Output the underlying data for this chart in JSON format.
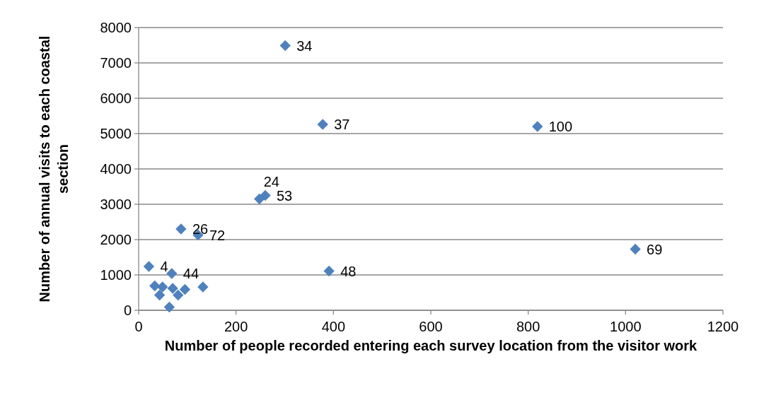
{
  "chart_data": {
    "type": "scatter",
    "xlabel": "Number of people recorded entering each survey location from the visitor work",
    "ylabel": "Number of annual visits to each coastal section",
    "xlim": [
      0,
      1200
    ],
    "xticks": [
      0,
      200,
      400,
      600,
      800,
      1000,
      1200
    ],
    "ylim": [
      0,
      8000
    ],
    "yticks": [
      0,
      1000,
      2000,
      3000,
      4000,
      5000,
      6000,
      7000,
      8000
    ],
    "grid": "y",
    "marker": "diamond",
    "series": [
      {
        "color": "#4f81bd",
        "x": [
          301,
          378,
          819,
          260,
          248,
          87,
          122,
          391,
          1020,
          21,
          68,
          33,
          49,
          43,
          70,
          81,
          95,
          132,
          63
        ],
        "values": [
          7490,
          5260,
          5200,
          3250,
          3150,
          2300,
          2130,
          1110,
          1730,
          1240,
          1040,
          690,
          660,
          430,
          620,
          430,
          590,
          660,
          90
        ]
      }
    ],
    "annotations": [
      {
        "text": "34",
        "x": 301,
        "y": 7490
      },
      {
        "text": "37",
        "x": 378,
        "y": 5260
      },
      {
        "text": "100",
        "x": 819,
        "y": 5200
      },
      {
        "text": "53",
        "x": 260,
        "y": 3250
      },
      {
        "text": "24",
        "x": 248,
        "y": 3150
      },
      {
        "text": "26",
        "x": 87,
        "y": 2300
      },
      {
        "text": "72",
        "x": 122,
        "y": 2130
      },
      {
        "text": "48",
        "x": 391,
        "y": 1110
      },
      {
        "text": "69",
        "x": 1020,
        "y": 1730
      },
      {
        "text": "4",
        "x": 21,
        "y": 1240
      },
      {
        "text": "44",
        "x": 68,
        "y": 1040
      }
    ]
  }
}
